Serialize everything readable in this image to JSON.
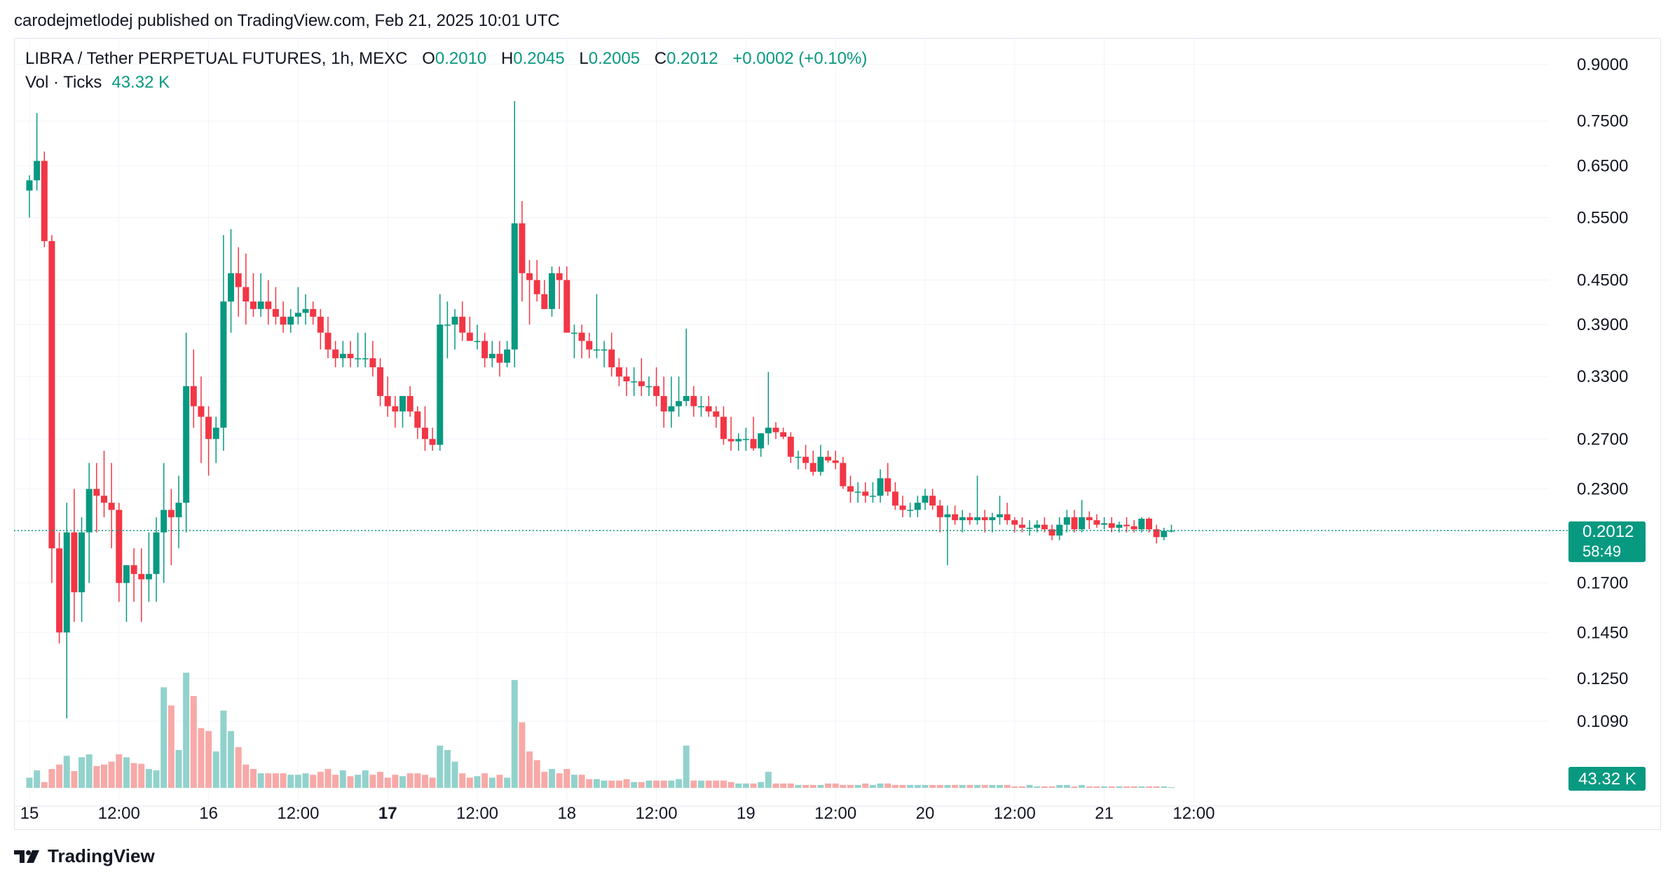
{
  "publisher_line": "carodejmetlodej published on TradingView.com, Feb 21, 2025 10:01 UTC",
  "legend": {
    "title": "LIBRA / Tether PERPETUAL FUTURES, 1h, MEXC",
    "o_label": "O",
    "o_value": "0.2010",
    "h_label": "H",
    "h_value": "0.2045",
    "l_label": "L",
    "l_value": "0.2005",
    "c_label": "C",
    "c_value": "0.2012",
    "change": "+0.0002 (+0.10%)",
    "vol_label": "Vol · Ticks",
    "vol_value": "43.32 K"
  },
  "branding": {
    "logo_text": "TradingView"
  },
  "colors": {
    "up": "#089981",
    "down": "#f23645",
    "up_vol": "#92d2cc",
    "down_vol": "#f7a9a7",
    "grid": "#f0f3fa",
    "axis_text": "#131722",
    "last_price_line": "#089981"
  },
  "chart_data": {
    "type": "candlestick",
    "title": "LIBRA / Tether PERPETUAL FUTURES, 1h, MEXC",
    "scale": "log",
    "ylim": [
      0.088,
      0.98
    ],
    "y_ticks": [
      "0.9000",
      "0.7500",
      "0.6500",
      "0.5500",
      "0.4500",
      "0.3900",
      "0.3300",
      "0.2700",
      "0.2300",
      "0.1700",
      "0.1450",
      "0.1250",
      "0.1090"
    ],
    "x_ticks": [
      {
        "label": "15",
        "bold": false,
        "index": 0
      },
      {
        "label": "12:00",
        "bold": false,
        "index": 12
      },
      {
        "label": "16",
        "bold": false,
        "index": 24
      },
      {
        "label": "12:00",
        "bold": false,
        "index": 36
      },
      {
        "label": "17",
        "bold": true,
        "index": 48
      },
      {
        "label": "12:00",
        "bold": false,
        "index": 60
      },
      {
        "label": "18",
        "bold": false,
        "index": 72
      },
      {
        "label": "12:00",
        "bold": false,
        "index": 84
      },
      {
        "label": "19",
        "bold": false,
        "index": 96
      },
      {
        "label": "12:00",
        "bold": false,
        "index": 108
      },
      {
        "label": "20",
        "bold": false,
        "index": 120
      },
      {
        "label": "12:00",
        "bold": false,
        "index": 132
      },
      {
        "label": "21",
        "bold": false,
        "index": 144
      },
      {
        "label": "12:00",
        "bold": false,
        "index": 156
      }
    ],
    "last_price": "0.2012",
    "countdown": "58:49",
    "last_volume": "43.32 K",
    "candles": [
      [
        0.6,
        0.63,
        0.55,
        0.62,
        1.4
      ],
      [
        0.62,
        0.77,
        0.6,
        0.66,
        2.4
      ],
      [
        0.66,
        0.68,
        0.5,
        0.51,
        0.8
      ],
      [
        0.51,
        0.52,
        0.17,
        0.19,
        2.6
      ],
      [
        0.19,
        0.2,
        0.14,
        0.145,
        3.2
      ],
      [
        0.145,
        0.22,
        0.11,
        0.2,
        4.4
      ],
      [
        0.2,
        0.23,
        0.15,
        0.165,
        2.3
      ],
      [
        0.165,
        0.21,
        0.15,
        0.2,
        4.2
      ],
      [
        0.2,
        0.25,
        0.17,
        0.23,
        4.6
      ],
      [
        0.23,
        0.25,
        0.2,
        0.225,
        3
      ],
      [
        0.225,
        0.26,
        0.21,
        0.22,
        3.2
      ],
      [
        0.22,
        0.25,
        0.19,
        0.215,
        3.6
      ],
      [
        0.215,
        0.22,
        0.16,
        0.17,
        4.6
      ],
      [
        0.17,
        0.18,
        0.15,
        0.18,
        4.2
      ],
      [
        0.18,
        0.19,
        0.16,
        0.175,
        3.4
      ],
      [
        0.175,
        0.19,
        0.15,
        0.172,
        3.3
      ],
      [
        0.172,
        0.2,
        0.16,
        0.175,
        2.6
      ],
      [
        0.175,
        0.21,
        0.16,
        0.2,
        2.4
      ],
      [
        0.2,
        0.25,
        0.17,
        0.215,
        13.8
      ],
      [
        0.215,
        0.23,
        0.18,
        0.21,
        11.3
      ],
      [
        0.21,
        0.24,
        0.19,
        0.22,
        5.2
      ],
      [
        0.22,
        0.38,
        0.2,
        0.32,
        15.8
      ],
      [
        0.32,
        0.36,
        0.28,
        0.3,
        12.6
      ],
      [
        0.3,
        0.33,
        0.25,
        0.29,
        8.2
      ],
      [
        0.29,
        0.3,
        0.24,
        0.27,
        7.8
      ],
      [
        0.27,
        0.29,
        0.25,
        0.28,
        5
      ],
      [
        0.28,
        0.52,
        0.26,
        0.42,
        10.6
      ],
      [
        0.42,
        0.53,
        0.38,
        0.46,
        7.8
      ],
      [
        0.46,
        0.5,
        0.4,
        0.44,
        5.6
      ],
      [
        0.44,
        0.49,
        0.39,
        0.42,
        3.2
      ],
      [
        0.42,
        0.46,
        0.4,
        0.41,
        2.6
      ],
      [
        0.41,
        0.46,
        0.4,
        0.42,
        2
      ],
      [
        0.42,
        0.45,
        0.39,
        0.41,
        2
      ],
      [
        0.41,
        0.44,
        0.39,
        0.4,
        2
      ],
      [
        0.4,
        0.42,
        0.38,
        0.39,
        2
      ],
      [
        0.39,
        0.41,
        0.38,
        0.4,
        1.8
      ],
      [
        0.4,
        0.44,
        0.39,
        0.405,
        1.8
      ],
      [
        0.405,
        0.43,
        0.39,
        0.41,
        2
      ],
      [
        0.41,
        0.42,
        0.39,
        0.4,
        1.8
      ],
      [
        0.4,
        0.41,
        0.36,
        0.38,
        2.2
      ],
      [
        0.38,
        0.4,
        0.35,
        0.36,
        2.6
      ],
      [
        0.36,
        0.37,
        0.34,
        0.35,
        1.8
      ],
      [
        0.35,
        0.37,
        0.34,
        0.355,
        2.4
      ],
      [
        0.355,
        0.37,
        0.34,
        0.35,
        1.6
      ],
      [
        0.35,
        0.38,
        0.34,
        0.35,
        1.8
      ],
      [
        0.35,
        0.38,
        0.34,
        0.35,
        2.4
      ],
      [
        0.35,
        0.37,
        0.33,
        0.34,
        1.8
      ],
      [
        0.34,
        0.35,
        0.3,
        0.31,
        2.2
      ],
      [
        0.31,
        0.33,
        0.29,
        0.3,
        1.4
      ],
      [
        0.3,
        0.31,
        0.28,
        0.295,
        1.8
      ],
      [
        0.295,
        0.31,
        0.28,
        0.31,
        1.6
      ],
      [
        0.31,
        0.32,
        0.29,
        0.295,
        2
      ],
      [
        0.295,
        0.3,
        0.27,
        0.28,
        2
      ],
      [
        0.28,
        0.3,
        0.26,
        0.27,
        1.8
      ],
      [
        0.27,
        0.28,
        0.26,
        0.265,
        1.4
      ],
      [
        0.265,
        0.43,
        0.26,
        0.39,
        5.8
      ],
      [
        0.39,
        0.42,
        0.35,
        0.39,
        5.2
      ],
      [
        0.39,
        0.41,
        0.36,
        0.4,
        3.6
      ],
      [
        0.4,
        0.42,
        0.37,
        0.38,
        2
      ],
      [
        0.38,
        0.4,
        0.37,
        0.37,
        1.4
      ],
      [
        0.37,
        0.39,
        0.36,
        0.37,
        1.6
      ],
      [
        0.37,
        0.38,
        0.34,
        0.35,
        2
      ],
      [
        0.35,
        0.37,
        0.34,
        0.355,
        1.4
      ],
      [
        0.355,
        0.37,
        0.33,
        0.345,
        1.8
      ],
      [
        0.345,
        0.37,
        0.34,
        0.36,
        1.4
      ],
      [
        0.36,
        0.8,
        0.34,
        0.54,
        14.8
      ],
      [
        0.54,
        0.58,
        0.42,
        0.46,
        9
      ],
      [
        0.46,
        0.48,
        0.39,
        0.45,
        5
      ],
      [
        0.45,
        0.48,
        0.42,
        0.43,
        3.8
      ],
      [
        0.43,
        0.45,
        0.41,
        0.41,
        2.2
      ],
      [
        0.41,
        0.47,
        0.4,
        0.46,
        2.6
      ],
      [
        0.46,
        0.47,
        0.41,
        0.45,
        2
      ],
      [
        0.45,
        0.47,
        0.38,
        0.38,
        2.6
      ],
      [
        0.38,
        0.39,
        0.35,
        0.38,
        1.8
      ],
      [
        0.38,
        0.39,
        0.35,
        0.37,
        1.8
      ],
      [
        0.37,
        0.38,
        0.35,
        0.36,
        1.2
      ],
      [
        0.36,
        0.43,
        0.35,
        0.36,
        1.2
      ],
      [
        0.36,
        0.37,
        0.34,
        0.36,
        1
      ],
      [
        0.36,
        0.38,
        0.33,
        0.34,
        1
      ],
      [
        0.34,
        0.35,
        0.32,
        0.33,
        1
      ],
      [
        0.33,
        0.34,
        0.31,
        0.325,
        1.2
      ],
      [
        0.325,
        0.34,
        0.31,
        0.325,
        0.8
      ],
      [
        0.325,
        0.35,
        0.31,
        0.32,
        0.8
      ],
      [
        0.32,
        0.33,
        0.31,
        0.32,
        1
      ],
      [
        0.32,
        0.34,
        0.3,
        0.31,
        1
      ],
      [
        0.31,
        0.33,
        0.28,
        0.295,
        1
      ],
      [
        0.295,
        0.33,
        0.28,
        0.3,
        1
      ],
      [
        0.3,
        0.33,
        0.29,
        0.305,
        1.2
      ],
      [
        0.305,
        0.385,
        0.3,
        0.31,
        5.8
      ],
      [
        0.31,
        0.32,
        0.29,
        0.3,
        1
      ],
      [
        0.3,
        0.31,
        0.29,
        0.3,
        1
      ],
      [
        0.3,
        0.31,
        0.29,
        0.295,
        1
      ],
      [
        0.295,
        0.3,
        0.28,
        0.29,
        1
      ],
      [
        0.29,
        0.3,
        0.265,
        0.27,
        1
      ],
      [
        0.27,
        0.29,
        0.26,
        0.268,
        0.8
      ],
      [
        0.268,
        0.275,
        0.26,
        0.27,
        0.6
      ],
      [
        0.27,
        0.28,
        0.26,
        0.27,
        0.6
      ],
      [
        0.27,
        0.29,
        0.26,
        0.262,
        0.6
      ],
      [
        0.262,
        0.275,
        0.255,
        0.275,
        0.8
      ],
      [
        0.275,
        0.335,
        0.265,
        0.28,
        2.2
      ],
      [
        0.28,
        0.285,
        0.27,
        0.276,
        0.6
      ],
      [
        0.276,
        0.28,
        0.27,
        0.272,
        0.6
      ],
      [
        0.272,
        0.276,
        0.25,
        0.255,
        0.6
      ],
      [
        0.255,
        0.26,
        0.245,
        0.255,
        0.4
      ],
      [
        0.255,
        0.265,
        0.245,
        0.25,
        0.4
      ],
      [
        0.25,
        0.26,
        0.24,
        0.243,
        0.4
      ],
      [
        0.243,
        0.265,
        0.24,
        0.255,
        0.4
      ],
      [
        0.255,
        0.26,
        0.25,
        0.252,
        0.6
      ],
      [
        0.252,
        0.26,
        0.245,
        0.25,
        0.6
      ],
      [
        0.25,
        0.255,
        0.23,
        0.232,
        0.4
      ],
      [
        0.232,
        0.24,
        0.22,
        0.228,
        0.4
      ],
      [
        0.228,
        0.235,
        0.22,
        0.228,
        0.4
      ],
      [
        0.228,
        0.235,
        0.22,
        0.225,
        0.6
      ],
      [
        0.225,
        0.235,
        0.22,
        0.225,
        0.4
      ],
      [
        0.225,
        0.245,
        0.22,
        0.238,
        0.6
      ],
      [
        0.238,
        0.25,
        0.225,
        0.228,
        0.6
      ],
      [
        0.228,
        0.235,
        0.215,
        0.218,
        0.4
      ],
      [
        0.218,
        0.225,
        0.21,
        0.215,
        0.4
      ],
      [
        0.215,
        0.22,
        0.21,
        0.215,
        0.4
      ],
      [
        0.215,
        0.225,
        0.21,
        0.22,
        0.4
      ],
      [
        0.22,
        0.23,
        0.215,
        0.225,
        0.4
      ],
      [
        0.225,
        0.23,
        0.215,
        0.218,
        0.4
      ],
      [
        0.218,
        0.222,
        0.2,
        0.21,
        0.4
      ],
      [
        0.21,
        0.218,
        0.18,
        0.212,
        0.4
      ],
      [
        0.212,
        0.218,
        0.205,
        0.208,
        0.4
      ],
      [
        0.208,
        0.215,
        0.2,
        0.21,
        0.4
      ],
      [
        0.21,
        0.213,
        0.205,
        0.208,
        0.4
      ],
      [
        0.208,
        0.24,
        0.205,
        0.21,
        0.4
      ],
      [
        0.21,
        0.215,
        0.2,
        0.208,
        0.4
      ],
      [
        0.208,
        0.213,
        0.2,
        0.21,
        0.4
      ],
      [
        0.21,
        0.225,
        0.205,
        0.212,
        0.4
      ],
      [
        0.212,
        0.22,
        0.205,
        0.208,
        0.4
      ],
      [
        0.208,
        0.21,
        0.2,
        0.205,
        0.2
      ],
      [
        0.205,
        0.21,
        0.2,
        0.203,
        0.2
      ],
      [
        0.203,
        0.208,
        0.198,
        0.203,
        0.4
      ],
      [
        0.203,
        0.208,
        0.2,
        0.205,
        0.2
      ],
      [
        0.205,
        0.21,
        0.2,
        0.202,
        0.2
      ],
      [
        0.202,
        0.205,
        0.195,
        0.198,
        0.2
      ],
      [
        0.198,
        0.21,
        0.195,
        0.205,
        0.4
      ],
      [
        0.205,
        0.215,
        0.2,
        0.21,
        0.4
      ],
      [
        0.21,
        0.215,
        0.2,
        0.202,
        0.2
      ],
      [
        0.202,
        0.222,
        0.2,
        0.21,
        0.4
      ],
      [
        0.21,
        0.214,
        0.202,
        0.208,
        0.2
      ],
      [
        0.208,
        0.212,
        0.203,
        0.205,
        0.2
      ],
      [
        0.205,
        0.21,
        0.202,
        0.206,
        0.2
      ],
      [
        0.206,
        0.21,
        0.2,
        0.203,
        0.2
      ],
      [
        0.203,
        0.207,
        0.2,
        0.205,
        0.2
      ],
      [
        0.205,
        0.21,
        0.2,
        0.204,
        0.2
      ],
      [
        0.204,
        0.208,
        0.2,
        0.202,
        0.2
      ],
      [
        0.202,
        0.21,
        0.2,
        0.209,
        0.2
      ],
      [
        0.209,
        0.21,
        0.2,
        0.202,
        0.2
      ],
      [
        0.202,
        0.205,
        0.193,
        0.197,
        0.2
      ],
      [
        0.197,
        0.203,
        0.195,
        0.201,
        0.2
      ],
      [
        0.201,
        0.205,
        0.2,
        0.2012,
        0.1
      ]
    ]
  }
}
